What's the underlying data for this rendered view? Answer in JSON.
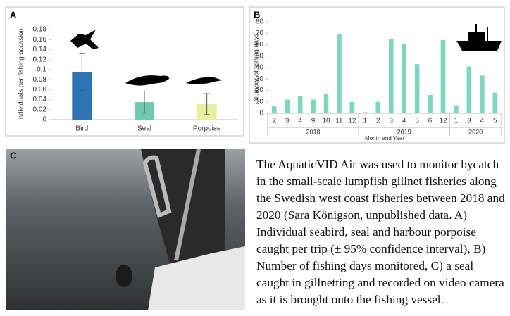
{
  "chart_data": [
    {
      "type": "bar",
      "panel": "A",
      "categories": [
        "Bird",
        "Seal",
        "Porpoise"
      ],
      "values": [
        0.095,
        0.035,
        0.031
      ],
      "errors": [
        0.037,
        0.022,
        0.021
      ],
      "colors": [
        "#2e75b6",
        "#70c8b0",
        "#e6f0a0"
      ],
      "y_label": "Individuals per fishing occasion",
      "ylim": [
        0,
        0.18
      ],
      "yticks": [
        0,
        0.02,
        0.04,
        0.06,
        0.08,
        0.1,
        0.12,
        0.14,
        0.16,
        0.18
      ],
      "grid": false
    },
    {
      "type": "bar",
      "panel": "B",
      "color": "#7fd6bf",
      "y_label": "Number of fishing days",
      "x_label": "Month and Year",
      "groups": [
        {
          "name": "2018",
          "categories": [
            "2",
            "3",
            "4",
            "9",
            "10",
            "11",
            "12"
          ],
          "values": [
            6,
            12,
            15,
            12,
            17,
            69,
            10
          ]
        },
        {
          "name": "2019",
          "categories": [
            "1",
            "2",
            "3",
            "4",
            "5",
            "6",
            "12"
          ],
          "values": [
            1,
            10,
            65,
            61,
            43,
            16,
            64
          ]
        },
        {
          "name": "2020",
          "categories": [
            "1",
            "3",
            "4",
            "5"
          ],
          "values": [
            7,
            41,
            33,
            18
          ]
        }
      ],
      "ylim": [
        0,
        80
      ],
      "yticks": [
        0,
        10,
        20,
        30,
        40,
        50,
        60,
        70,
        80
      ],
      "grid": false
    }
  ],
  "photo": {
    "panel": "C"
  },
  "caption": "The AquaticVID Air was used to monitor bycatch in the small-scale lumpfish gillnet fisheries along the Swedish west coast fisheries between 2018 and 2020 (Sara Königson, unpublished data. A) Individual seabird, seal and harbour porpoise caught per trip (± 95% confidence interval), B) Number of fishing days monitored, C) a seal caught in gillnetting and recorded on video camera as it is brought onto the fishing vessel."
}
